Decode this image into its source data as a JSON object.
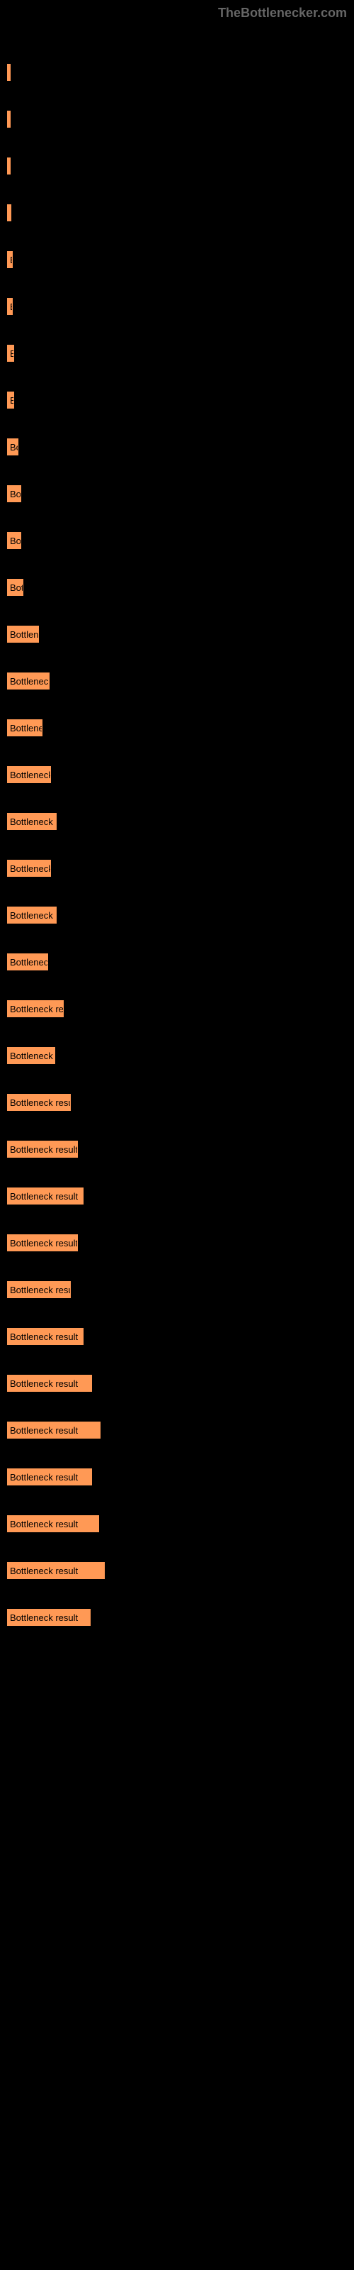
{
  "watermark": "TheBottlenecker.com",
  "chart": {
    "type": "bar",
    "background_color": "#000000",
    "bar_color": "#ff9955",
    "border_color": "#ff9955",
    "text_color": "#000000",
    "font_size": 13,
    "bar_label": "Bottleneck result",
    "max_width": 160,
    "bars": [
      {
        "width": 2
      },
      {
        "width": 4
      },
      {
        "width": 4
      },
      {
        "width": 6
      },
      {
        "width": 8
      },
      {
        "width": 8
      },
      {
        "width": 10
      },
      {
        "width": 10
      },
      {
        "width": 16
      },
      {
        "width": 20
      },
      {
        "width": 20
      },
      {
        "width": 23
      },
      {
        "width": 45
      },
      {
        "width": 60
      },
      {
        "width": 50
      },
      {
        "width": 62
      },
      {
        "width": 70
      },
      {
        "width": 62
      },
      {
        "width": 70
      },
      {
        "width": 58
      },
      {
        "width": 80
      },
      {
        "width": 68
      },
      {
        "width": 90
      },
      {
        "width": 100
      },
      {
        "width": 108
      },
      {
        "width": 100
      },
      {
        "width": 90
      },
      {
        "width": 108
      },
      {
        "width": 120
      },
      {
        "width": 132
      },
      {
        "width": 120
      },
      {
        "width": 130
      },
      {
        "width": 138
      },
      {
        "width": 118
      }
    ]
  }
}
